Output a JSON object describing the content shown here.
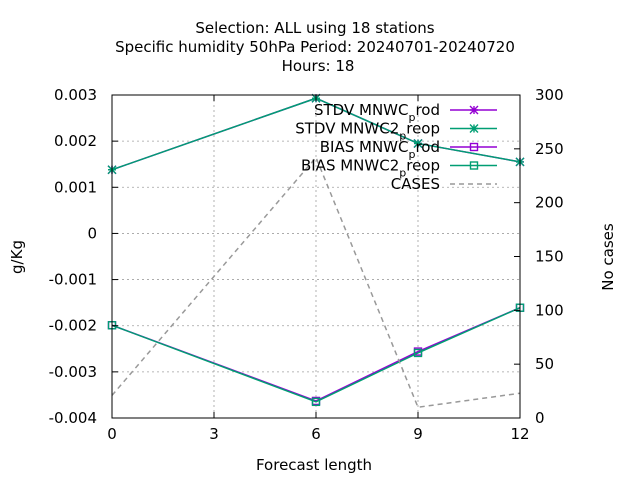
{
  "chart_data": {
    "type": "line",
    "title": [
      "Selection: ALL using    18 stations",
      "Specific humidity 50hPa   Period: 20240701-20240720",
      "Hours:  18"
    ],
    "xlabel": "Forecast length",
    "ylabel": "g/Kg",
    "y2label": "No cases",
    "x": [
      0,
      3,
      6,
      9,
      12
    ],
    "xlim": [
      0,
      12
    ],
    "xticks": [
      "0",
      "3",
      "6",
      "9",
      "12"
    ],
    "ylim": [
      -0.004,
      0.003
    ],
    "yticks": [
      "-0.004",
      "-0.003",
      "-0.002",
      "-0.001",
      "0",
      "0.001",
      "0.002",
      "0.003"
    ],
    "y2lim": [
      0,
      300
    ],
    "y2ticks": [
      "0",
      "50",
      "100",
      "150",
      "200",
      "250",
      "300"
    ],
    "grid": true,
    "legend_position": "top-right",
    "series": [
      {
        "name": "STDV MNWC_prod",
        "label": "STDV MNWC",
        "sub": "p",
        "tail": "rod",
        "axis": "y",
        "color": "#9400d3",
        "marker": "star",
        "dash": "solid",
        "x": [
          0,
          6,
          9,
          12
        ],
        "values": [
          0.00138,
          0.00293,
          0.00195,
          0.00155
        ]
      },
      {
        "name": "STDV MNWC2_preop",
        "label": "STDV MNWC2",
        "sub": "p",
        "tail": "reop",
        "axis": "y",
        "color": "#009e73",
        "marker": "star",
        "dash": "solid",
        "x": [
          0,
          6,
          9,
          12
        ],
        "values": [
          0.00138,
          0.00293,
          0.00195,
          0.00155
        ]
      },
      {
        "name": "BIAS MNWC_prod",
        "label": "BIAS MNWC",
        "sub": "p",
        "tail": "rod",
        "axis": "y",
        "color": "#9400d3",
        "marker": "square",
        "dash": "solid",
        "x": [
          0,
          6,
          9,
          12
        ],
        "values": [
          -0.00199,
          -0.00363,
          -0.00256,
          -0.00161
        ]
      },
      {
        "name": "BIAS MNWC2_preop",
        "label": "BIAS MNWC2",
        "sub": "p",
        "tail": "reop",
        "axis": "y",
        "color": "#009e73",
        "marker": "square",
        "dash": "solid",
        "x": [
          0,
          6,
          9,
          12
        ],
        "values": [
          -0.00199,
          -0.00365,
          -0.00259,
          -0.00161
        ]
      },
      {
        "name": "CASES",
        "label": "CASES",
        "sub": "",
        "tail": "",
        "axis": "y2",
        "color": "#999999",
        "marker": "none",
        "dash": "dashed",
        "x": [
          0,
          6,
          9,
          12
        ],
        "values": [
          21,
          242,
          10,
          23
        ]
      }
    ]
  }
}
